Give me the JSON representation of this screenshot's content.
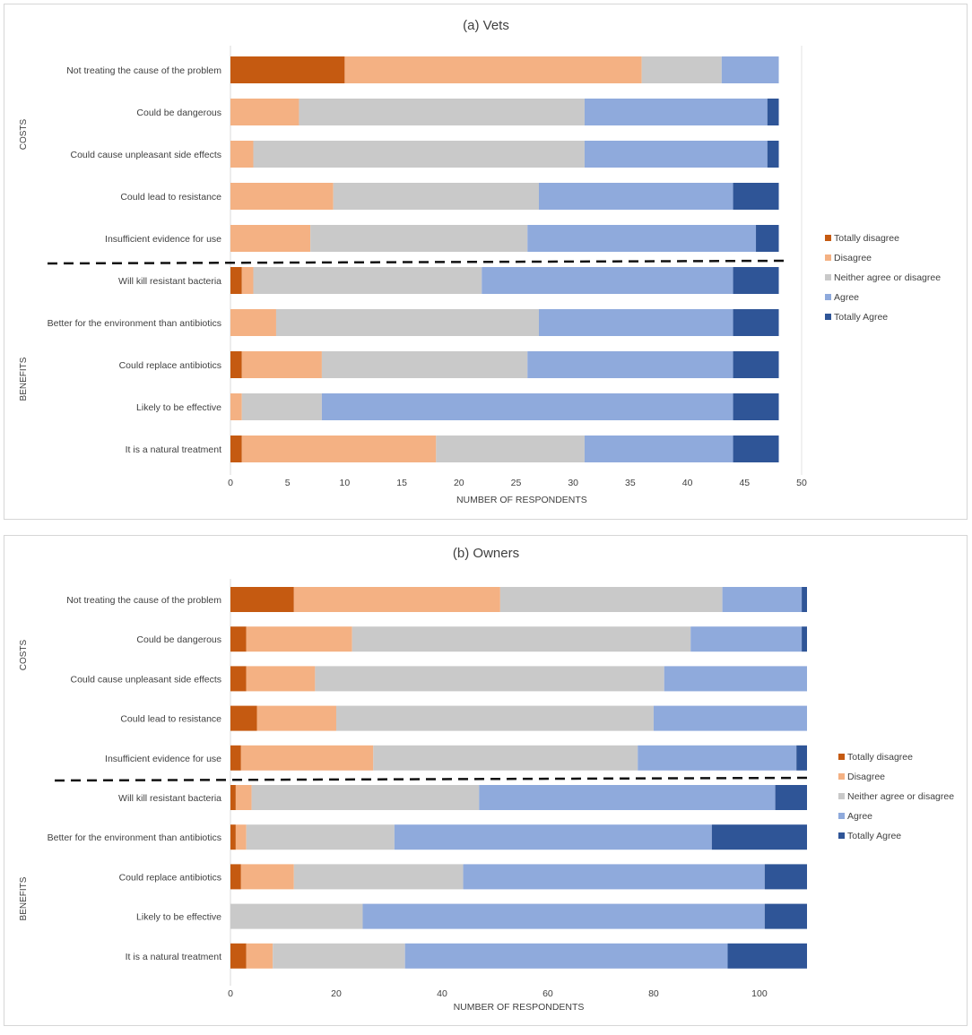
{
  "legend_colors": {
    "Totally disagree": "#C55A11",
    "Disagree": "#F4B183",
    "Neither agree or disagree": "#C9C9C9",
    "Agree": "#8FAADC",
    "Totally Agree": "#2F5597"
  },
  "chart_data": [
    {
      "type": "bar",
      "orientation": "horizontal",
      "stacked": true,
      "title": "(a) Vets",
      "xlabel": "NUMBER OF RESPONDENTS",
      "xlim": [
        0,
        50
      ],
      "xticks": [
        0,
        5,
        10,
        15,
        20,
        25,
        30,
        35,
        40,
        45,
        50
      ],
      "legend": [
        "Totally disagree",
        "Disagree",
        "Neither agree or disagree",
        "Agree",
        "Totally Agree"
      ],
      "legend_position": "right",
      "groups": [
        {
          "label": "COSTS",
          "categories": [
            "Not treating the cause of the problem",
            "Could be dangerous",
            "Could cause unpleasant side effects",
            "Could lead to resistance",
            "Insufficient evidence for use"
          ]
        },
        {
          "label": "BENEFITS",
          "categories": [
            "Will kill resistant bacteria",
            "Better for the environment than antibiotics",
            "Could replace antibiotics",
            "Likely to be effective",
            "It is a natural treatment"
          ]
        }
      ],
      "categories": [
        "Not treating the cause of the problem",
        "Could be dangerous",
        "Could cause unpleasant side effects",
        "Could lead to resistance",
        "Insufficient evidence for use",
        "Will kill resistant bacteria",
        "Better for the environment than antibiotics",
        "Could replace antibiotics",
        "Likely to be effective",
        "It is a natural treatment"
      ],
      "series": [
        {
          "name": "Totally disagree",
          "values": [
            10,
            0,
            0,
            0,
            0,
            1,
            0,
            1,
            0,
            1
          ]
        },
        {
          "name": "Disagree",
          "values": [
            26,
            6,
            2,
            9,
            7,
            1,
            4,
            7,
            1,
            17
          ]
        },
        {
          "name": "Neither agree or disagree",
          "values": [
            7,
            25,
            29,
            18,
            19,
            20,
            23,
            18,
            7,
            13
          ]
        },
        {
          "name": "Agree",
          "values": [
            5,
            16,
            16,
            17,
            20,
            22,
            17,
            18,
            36,
            13
          ]
        },
        {
          "name": "Totally Agree",
          "values": [
            0,
            1,
            1,
            4,
            2,
            4,
            4,
            4,
            4,
            4
          ]
        }
      ]
    },
    {
      "type": "bar",
      "orientation": "horizontal",
      "stacked": true,
      "title": "(b) Owners",
      "xlabel": "NUMBER OF RESPONDENTS",
      "xlim": [
        0,
        109
      ],
      "xticks": [
        0,
        20,
        40,
        60,
        80,
        100
      ],
      "legend": [
        "Totally disagree",
        "Disagree",
        "Neither agree or disagree",
        "Agree",
        "Totally Agree"
      ],
      "legend_position": "right",
      "groups": [
        {
          "label": "COSTS",
          "categories": [
            "Not treating the cause of the problem",
            "Could be dangerous",
            "Could cause unpleasant side effects",
            "Could lead to resistance",
            "Insufficient evidence for use"
          ]
        },
        {
          "label": "BENEFITS",
          "categories": [
            "Will kill resistant bacteria",
            "Better for the environment than antibiotics",
            "Could replace antibiotics",
            "Likely to be effective",
            "It is a natural treatment"
          ]
        }
      ],
      "categories": [
        "Not treating the cause of the problem",
        "Could be dangerous",
        "Could cause unpleasant side effects",
        "Could lead to resistance",
        "Insufficient evidence for use",
        "Will kill resistant bacteria",
        "Better for the environment than antibiotics",
        "Could replace antibiotics",
        "Likely to be effective",
        "It is a natural treatment"
      ],
      "series": [
        {
          "name": "Totally disagree",
          "values": [
            12,
            3,
            3,
            5,
            2,
            1,
            1,
            2,
            0,
            3
          ]
        },
        {
          "name": "Disagree",
          "values": [
            39,
            20,
            13,
            15,
            25,
            3,
            2,
            10,
            0,
            5
          ]
        },
        {
          "name": "Neither agree or disagree",
          "values": [
            42,
            64,
            66,
            60,
            50,
            43,
            28,
            32,
            25,
            25
          ]
        },
        {
          "name": "Agree",
          "values": [
            15,
            21,
            27,
            29,
            30,
            56,
            60,
            57,
            76,
            61
          ]
        },
        {
          "name": "Totally Agree",
          "values": [
            1,
            1,
            0,
            0,
            2,
            6,
            18,
            8,
            8,
            15
          ]
        }
      ]
    }
  ]
}
